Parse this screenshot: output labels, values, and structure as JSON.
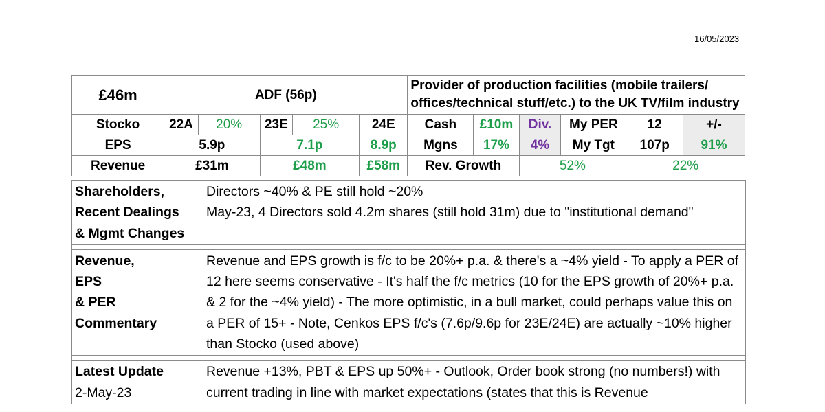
{
  "date": "16/05/2023",
  "header": {
    "market_cap": "£46m",
    "title": "ADF (56p)",
    "description": "Provider of production facilities (mobile trailers/ offices/technical stuff/etc.) to the UK TV/film industry"
  },
  "row_stocko": {
    "label": "Stocko",
    "y1": "22A",
    "g1": "20%",
    "y2": "23E",
    "g2": "25%",
    "y3": "24E",
    "cash_label": "Cash",
    "cash_value": "£10m",
    "div_label": "Div.",
    "per_label": "My PER",
    "per_value": "12",
    "pm_label": "+/-"
  },
  "row_eps": {
    "label": "EPS",
    "v1": "5.9p",
    "v2": "7.1p",
    "v3": "8.9p",
    "mgns_label": "Mgns",
    "mgns_value": "17%",
    "div_value": "4%",
    "tgt_label": "My Tgt",
    "tgt_value": "107p",
    "pm_value": "91%"
  },
  "row_revenue": {
    "label": "Revenue",
    "v1": "£31m",
    "v2": "£48m",
    "v3": "£58m",
    "growth_label": "Rev. Growth",
    "growth1": "52%",
    "growth2": "22%"
  },
  "sections": {
    "shareholders": {
      "label_l1": "Shareholders,",
      "label_l2": "Recent Dealings",
      "label_l3": "& Mgmt Changes",
      "line1": "Directors ~40% & PE still hold ~20%",
      "line2": "May-23, 4 Directors sold 4.2m shares (still hold 31m) due to \"institutional demand\""
    },
    "commentary": {
      "label_l1": "Revenue,",
      "label_l2": "EPS",
      "label_l3": "& PER",
      "label_l4": "Commentary",
      "text": "Revenue and EPS growth is f/c to be 20%+ p.a. & there's a ~4% yield - To apply a PER of 12 here seems conservative - It's half the f/c metrics (10 for the EPS growth of 20%+ p.a. & 2 for the ~4% yield) - The more optimistic, in a bull market, could perhaps value this on a PER of 15+ - Note, Cenkos EPS f/c's (7.6p/9.6p for 23E/24E) are actually ~10% higher than Stocko (used above)"
    },
    "update": {
      "label_l1": "Latest Update",
      "label_l2": "2-May-23",
      "text": "Revenue +13%, PBT & EPS up 50%+ - Outlook, Order book strong (no numbers!) with current trading in line with market expectations (states that this is Revenue"
    }
  }
}
